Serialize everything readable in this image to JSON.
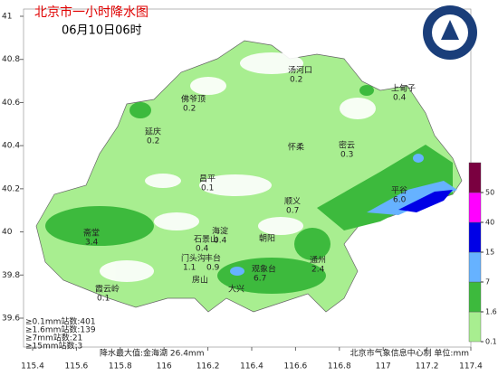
{
  "header": {
    "title": "北京市一小时降水图",
    "subtitle": "06月10日06时"
  },
  "axes": {
    "lon_ticks": [
      115.4,
      115.6,
      115.8,
      116,
      116.2,
      116.4,
      116.6,
      116.8,
      117,
      117.2,
      117.4
    ],
    "lat_ticks": [
      41,
      40.8,
      40.6,
      40.4,
      40.2,
      40,
      39.8,
      39.6
    ]
  },
  "stations": [
    {
      "name": "汤河口",
      "value": 0.2
    },
    {
      "name": "上甸子",
      "value": 0.4
    },
    {
      "name": "佛爷顶",
      "value": 0.2
    },
    {
      "name": "延庆",
      "value": 0.2
    },
    {
      "name": "怀柔"
    },
    {
      "name": "密云",
      "value": 0.3
    },
    {
      "name": "昌平",
      "value": 0.1
    },
    {
      "name": "顺义",
      "value": 0.7
    },
    {
      "name": "平谷",
      "value": 6,
      "value_label": "6.0"
    },
    {
      "name": "斋堂",
      "value": 3.4
    },
    {
      "name": "石景山",
      "value": 0.4
    },
    {
      "name": "海淀",
      "value": 0.4
    },
    {
      "name": "朝阳"
    },
    {
      "name": "门头沟",
      "value": 1.1
    },
    {
      "name": "丰台",
      "value": 0.9
    },
    {
      "name": "房山"
    },
    {
      "name": "观象台",
      "value": 6.7
    },
    {
      "name": "大兴"
    },
    {
      "name": "通州",
      "value": 2.4
    },
    {
      "name": "霞云岭",
      "value": 0.1
    }
  ],
  "stats": [
    "≥0.1mm站数:401",
    "≥1.6mm站数:139",
    "≥7mm站数:21",
    "≥15mm站数:3"
  ],
  "max_note": "降水最大值:金海湖 26.4mm",
  "credit": "北京市气象信息中心制 单位:mm",
  "legend": {
    "ticks": [
      0.1,
      1.6,
      7,
      15,
      40,
      50
    ],
    "colors": [
      "#a8ee90",
      "#3dba3d",
      "#66b2ff",
      "#0000e6",
      "#ff00ff",
      "#7a0040"
    ]
  }
}
